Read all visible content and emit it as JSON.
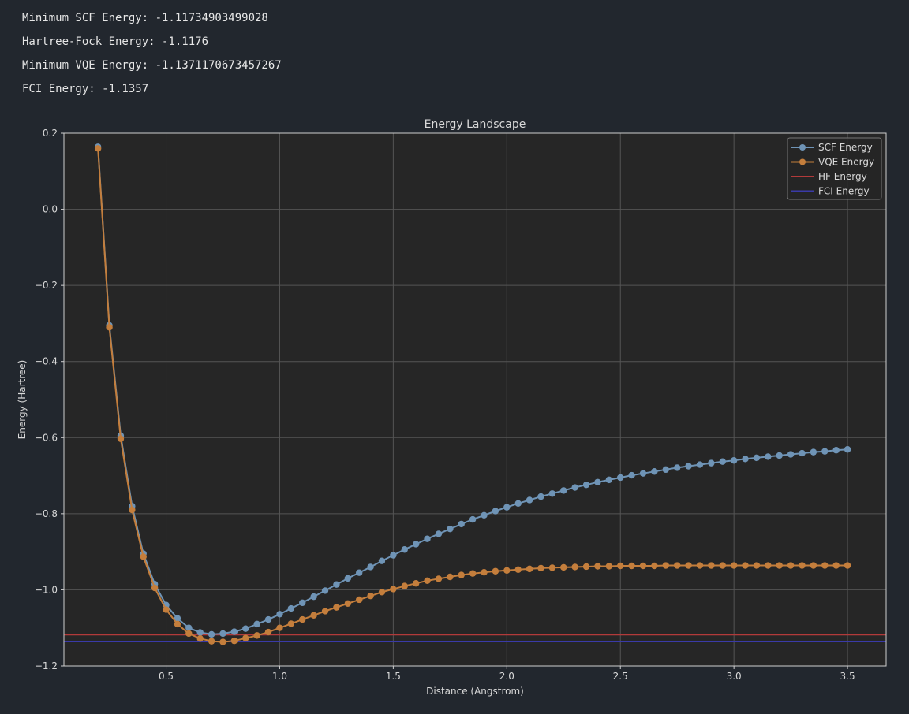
{
  "output": {
    "lines": [
      "Minimum SCF Energy: -1.11734903499028",
      "Hartree-Fock Energy: -1.1176",
      "Minimum VQE Energy: -1.1371170673457267",
      "FCI Energy: -1.1357"
    ]
  },
  "colors": {
    "background": "#22272e",
    "axes_face": "#262626",
    "grid": "#555555",
    "text": "#d9d9d9",
    "scf": "#6f94b6",
    "vqe": "#c47e3c",
    "hf": "#b23a3a",
    "fci": "#3a3aa8"
  },
  "chart_data": {
    "type": "line",
    "title": "Energy Landscape",
    "xlabel": "Distance (Angstrom)",
    "ylabel": "Energy (Hartree)",
    "xlim": [
      0.05,
      3.67
    ],
    "ylim": [
      -1.2,
      0.2
    ],
    "xticks": [
      0.5,
      1.0,
      1.5,
      2.0,
      2.5,
      3.0,
      3.5
    ],
    "yticks": [
      0.2,
      0.0,
      -0.2,
      -0.4,
      -0.6,
      -0.8,
      -1.0,
      -1.2
    ],
    "grid": true,
    "legend_position": "top-right",
    "x": [
      0.2,
      0.25,
      0.3,
      0.35,
      0.4,
      0.45,
      0.5,
      0.55,
      0.6,
      0.65,
      0.7,
      0.75,
      0.8,
      0.85,
      0.9,
      0.95,
      1.0,
      1.05,
      1.1,
      1.15,
      1.2,
      1.25,
      1.3,
      1.35,
      1.4,
      1.45,
      1.5,
      1.55,
      1.6,
      1.65,
      1.7,
      1.75,
      1.8,
      1.85,
      1.9,
      1.95,
      2.0,
      2.05,
      2.1,
      2.15,
      2.2,
      2.25,
      2.3,
      2.35,
      2.4,
      2.45,
      2.5,
      2.55,
      2.6,
      2.65,
      2.7,
      2.75,
      2.8,
      2.85,
      2.9,
      2.95,
      3.0,
      3.05,
      3.1,
      3.15,
      3.2,
      3.25,
      3.3,
      3.35,
      3.4,
      3.45,
      3.5
    ],
    "series": [
      {
        "name": "SCF Energy",
        "kind": "line-marker",
        "values": [
          0.164,
          -0.305,
          -0.595,
          -0.78,
          -0.905,
          -0.985,
          -1.04,
          -1.075,
          -1.1,
          -1.112,
          -1.117,
          -1.115,
          -1.11,
          -1.102,
          -1.09,
          -1.078,
          -1.064,
          -1.049,
          -1.034,
          -1.018,
          -1.002,
          -0.986,
          -0.97,
          -0.955,
          -0.94,
          -0.924,
          -0.909,
          -0.894,
          -0.88,
          -0.866,
          -0.853,
          -0.84,
          -0.827,
          -0.815,
          -0.804,
          -0.793,
          -0.783,
          -0.773,
          -0.764,
          -0.755,
          -0.747,
          -0.739,
          -0.731,
          -0.724,
          -0.717,
          -0.711,
          -0.705,
          -0.699,
          -0.694,
          -0.689,
          -0.684,
          -0.679,
          -0.675,
          -0.671,
          -0.667,
          -0.663,
          -0.66,
          -0.656,
          -0.653,
          -0.65,
          -0.647,
          -0.644,
          -0.641,
          -0.638,
          -0.636,
          -0.633,
          -0.631
        ]
      },
      {
        "name": "VQE Energy",
        "kind": "line-marker",
        "values": [
          0.16,
          -0.31,
          -0.603,
          -0.79,
          -0.913,
          -0.995,
          -1.052,
          -1.09,
          -1.115,
          -1.128,
          -1.135,
          -1.137,
          -1.134,
          -1.127,
          -1.12,
          -1.111,
          -1.1,
          -1.089,
          -1.078,
          -1.067,
          -1.056,
          -1.046,
          -1.036,
          -1.026,
          -1.016,
          -1.006,
          -0.998,
          -0.99,
          -0.983,
          -0.976,
          -0.971,
          -0.966,
          -0.961,
          -0.957,
          -0.954,
          -0.951,
          -0.949,
          -0.947,
          -0.945,
          -0.943,
          -0.942,
          -0.941,
          -0.94,
          -0.939,
          -0.938,
          -0.938,
          -0.937,
          -0.937,
          -0.937,
          -0.937,
          -0.936,
          -0.936,
          -0.936,
          -0.936,
          -0.936,
          -0.936,
          -0.936,
          -0.936,
          -0.936,
          -0.936,
          -0.936,
          -0.936,
          -0.936,
          -0.936,
          -0.936,
          -0.936,
          -0.936
        ]
      },
      {
        "name": "HF Energy",
        "kind": "hline",
        "value": -1.1176
      },
      {
        "name": "FCI Energy",
        "kind": "hline",
        "value": -1.1357
      }
    ]
  }
}
